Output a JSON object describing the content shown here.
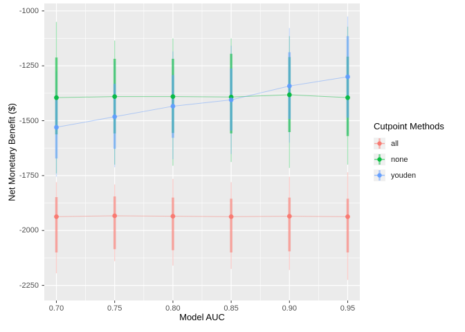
{
  "figure": {
    "x_axis_title": "Model AUC",
    "y_axis_title": "Net Monetary Benefit ($)"
  },
  "legend": {
    "title": "Cutpoint Methods",
    "items": [
      {
        "label": "all",
        "color": "#F8766D"
      },
      {
        "label": "none",
        "color": "#00BA38"
      },
      {
        "label": "youden",
        "color": "#619CFF"
      }
    ]
  },
  "chart_data": {
    "type": "line",
    "subtype": "pointrange-with-intervals",
    "title": "",
    "xlabel": "Model AUC",
    "ylabel": "Net Monetary Benefit ($)",
    "legend_title": "Cutpoint Methods",
    "legend_position": "right",
    "grid": true,
    "panel_bg": "#EBEBEB",
    "grid_color": "#FFFFFF",
    "tick_label_color": "#4D4D4D",
    "x": [
      0.7,
      0.75,
      0.8,
      0.85,
      0.9,
      0.95
    ],
    "x_tick_labels": [
      "0.70",
      "0.75",
      "0.80",
      "0.85",
      "0.90",
      "0.95"
    ],
    "y_ticks": [
      -1000,
      -1250,
      -1500,
      -1750,
      -2000,
      -2250
    ],
    "y_tick_labels": [
      "-1000",
      "-1250",
      "-1500",
      "-1750",
      "-2000",
      "-2250"
    ],
    "x_minor_ticks": [
      0.725,
      0.775,
      0.825,
      0.875,
      0.925
    ],
    "y_minor_ticks": [
      -1125,
      -1375,
      -1625,
      -1875,
      -2125
    ],
    "xlim": [
      0.6896,
      0.9604
    ],
    "ylim": [
      -2319,
      -966
    ],
    "series": [
      {
        "name": "all",
        "color": "#F8766D",
        "values": [
          -1937,
          -1933,
          -1935,
          -1937,
          -1935,
          -1937
        ],
        "inner_interval": [
          [
            -1848,
            -2100
          ],
          [
            -1845,
            -2085
          ],
          [
            -1850,
            -2090
          ],
          [
            -1855,
            -2100
          ],
          [
            -1850,
            -2095
          ],
          [
            -1855,
            -2100
          ]
        ],
        "outer_interval": [
          [
            -1780,
            -2195
          ],
          [
            -1790,
            -2140
          ],
          [
            -1765,
            -2160
          ],
          [
            -1780,
            -2175
          ],
          [
            -1755,
            -2180
          ],
          [
            -1735,
            -2225
          ]
        ]
      },
      {
        "name": "none",
        "color": "#00BA38",
        "values": [
          -1395,
          -1390,
          -1390,
          -1392,
          -1382,
          -1395
        ],
        "inner_interval": [
          [
            -1212,
            -1562
          ],
          [
            -1218,
            -1558
          ],
          [
            -1218,
            -1556
          ],
          [
            -1195,
            -1558
          ],
          [
            -1210,
            -1552
          ],
          [
            -1208,
            -1570
          ]
        ],
        "outer_interval": [
          [
            -1050,
            -1740
          ],
          [
            -1135,
            -1700
          ],
          [
            -1125,
            -1705
          ],
          [
            -1125,
            -1688
          ],
          [
            -1115,
            -1715
          ],
          [
            -1072,
            -1700
          ]
        ]
      },
      {
        "name": "youden",
        "color": "#619CFF",
        "values": [
          -1530,
          -1482,
          -1434,
          -1405,
          -1342,
          -1300
        ],
        "inner_interval": [
          [
            -1385,
            -1672
          ],
          [
            -1332,
            -1628
          ],
          [
            -1292,
            -1578
          ],
          [
            -1262,
            -1545
          ],
          [
            -1188,
            -1492
          ],
          [
            -1115,
            -1486
          ]
        ],
        "outer_interval": [
          [
            -1275,
            -1755
          ],
          [
            -1230,
            -1712
          ],
          [
            -1185,
            -1675
          ],
          [
            -1158,
            -1652
          ],
          [
            -1078,
            -1600
          ],
          [
            -1025,
            -1562
          ]
        ]
      }
    ]
  }
}
